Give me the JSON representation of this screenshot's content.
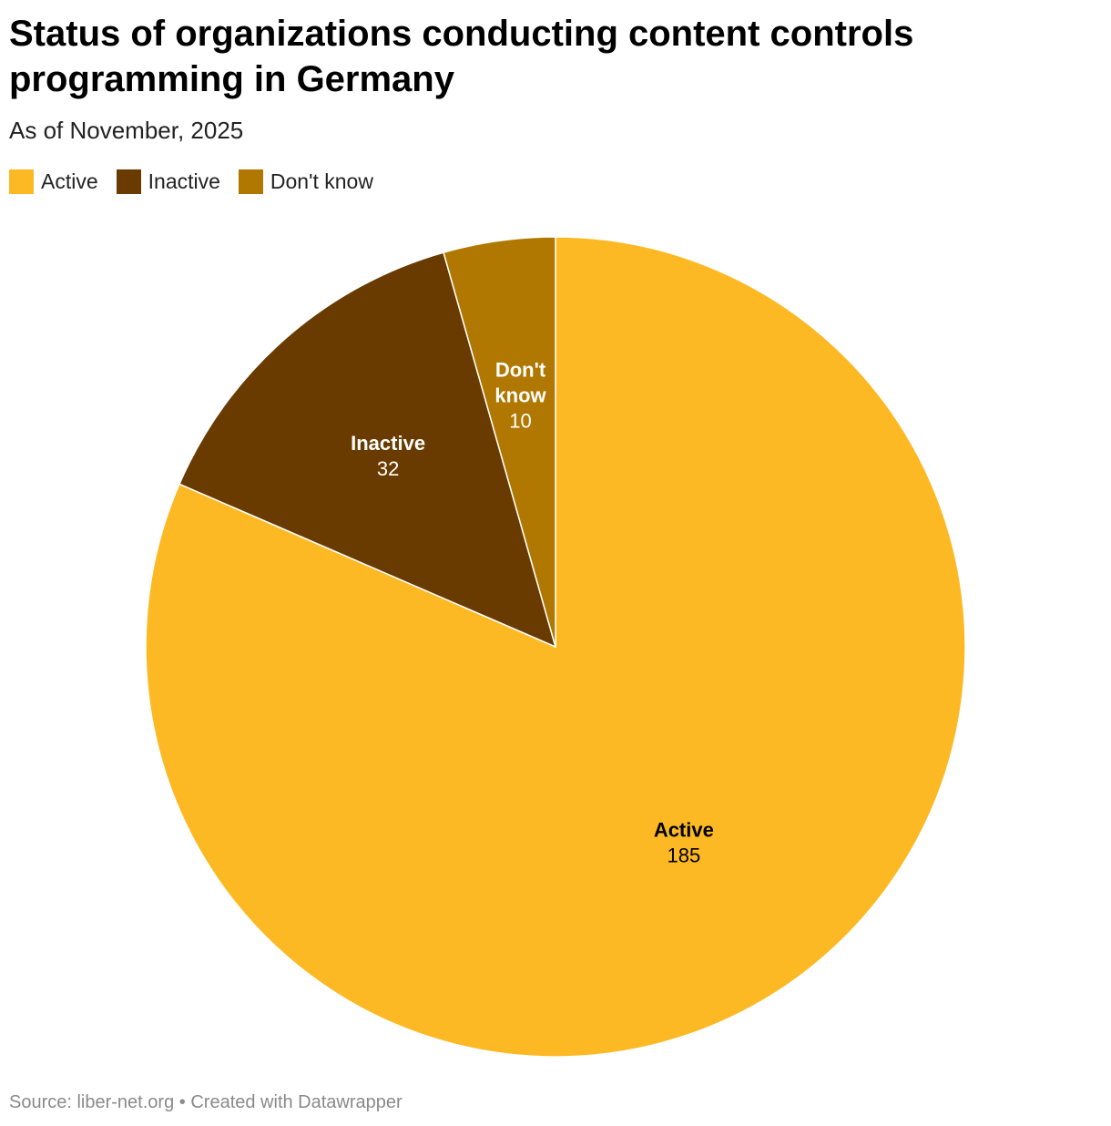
{
  "title": "Status of organizations conducting content controls programming in Germany",
  "subtitle": "As of November, 2025",
  "footer": {
    "source": "Source: liber-net.org",
    "separator": "•",
    "credit": "Created with Datawrapper"
  },
  "chart_data": {
    "type": "pie",
    "title": "Status of organizations conducting content controls programming in Germany",
    "subtitle": "As of November, 2025",
    "categories": [
      "Active",
      "Inactive",
      "Don't know"
    ],
    "values": [
      185,
      32,
      10
    ],
    "colors": [
      "#fdb923",
      "#6a3b00",
      "#b07800"
    ],
    "label_colors": [
      "#000000",
      "#ffffff",
      "#ffffff"
    ],
    "legend": "top-left"
  }
}
